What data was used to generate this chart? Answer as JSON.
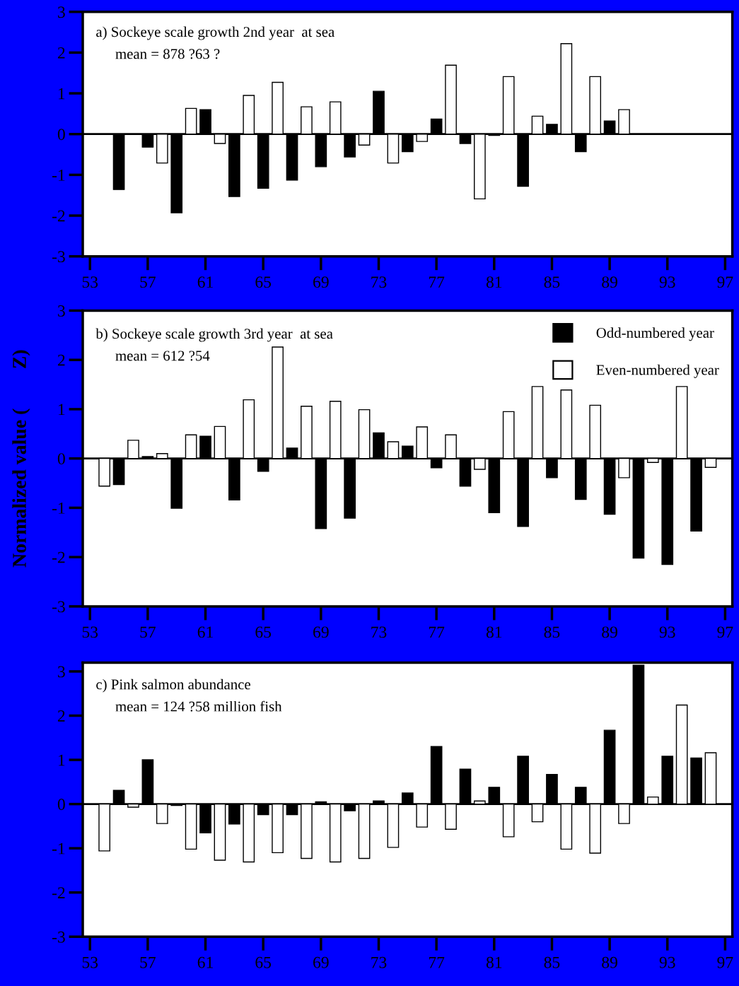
{
  "chart_data": [
    {
      "type": "bar",
      "title": "a) Sockeye scale growth 2nd year  at sea",
      "annotations": [
        "mean = 878 ?63 ?"
      ],
      "xlim": [
        52.5,
        97.5
      ],
      "xticks": [
        53,
        57,
        61,
        65,
        69,
        73,
        77,
        81,
        85,
        89,
        93,
        97
      ],
      "ylim": [
        -3,
        3
      ],
      "yticks": [
        {
          "value": -3,
          "label": "-3"
        },
        {
          "value": -2,
          "label": "-2"
        },
        {
          "value": -1,
          "label": "-1"
        },
        0,
        1,
        2,
        3
      ],
      "legend": false,
      "grid": false,
      "ref_lines": [
        {
          "axis": "y",
          "value": 0,
          "color": "#000000"
        }
      ],
      "series": [
        {
          "color": "#000000",
          "x": [
            55,
            57,
            59,
            61,
            63,
            65,
            67,
            69,
            71,
            73,
            75,
            77,
            79,
            81,
            83,
            85,
            87,
            89
          ],
          "values": [
            -1.36,
            -0.32,
            -1.93,
            0.6,
            -1.53,
            -1.33,
            -1.13,
            -0.8,
            -0.56,
            1.05,
            -0.43,
            0.37,
            -0.23,
            -0.03,
            -1.28,
            0.24,
            -0.43,
            0.32
          ]
        },
        {
          "color": "#ffffff",
          "x": [
            58,
            60,
            62,
            64,
            66,
            68,
            70,
            72,
            74,
            76,
            78,
            80,
            82,
            84,
            86,
            88,
            90
          ],
          "values": [
            -0.71,
            0.63,
            -0.23,
            0.95,
            1.27,
            0.67,
            0.79,
            -0.27,
            -0.71,
            -0.18,
            1.69,
            -1.59,
            1.41,
            0.44,
            2.22,
            1.41,
            0.6
          ]
        }
      ]
    },
    {
      "type": "bar",
      "title": "b) Sockeye scale growth 3rd year  at sea",
      "annotations": [
        "mean = 612 ?54"
      ],
      "ylabel": "Normalized value (        Z)",
      "xlim": [
        52.5,
        97.5
      ],
      "xticks": [
        53,
        57,
        61,
        65,
        69,
        73,
        77,
        81,
        85,
        89,
        93,
        97
      ],
      "ylim": [
        -3,
        3
      ],
      "yticks": [
        {
          "value": -3,
          "label": "-3"
        },
        {
          "value": -2,
          "label": "-2"
        },
        {
          "value": -1,
          "label": "-1"
        },
        0,
        1,
        2,
        3
      ],
      "legend": "top right",
      "grid": false,
      "ref_lines": [
        {
          "axis": "y",
          "value": 0,
          "color": "#000000"
        }
      ],
      "series": [
        {
          "name": "Odd-numbered year",
          "color": "#000000",
          "x": [
            55,
            57,
            59,
            61,
            63,
            65,
            67,
            69,
            71,
            73,
            75,
            77,
            79,
            81,
            83,
            85,
            87,
            89,
            91,
            93,
            95
          ],
          "values": [
            -0.53,
            0.04,
            -1.01,
            0.45,
            -0.84,
            -0.26,
            0.21,
            -1.42,
            -1.21,
            0.52,
            0.25,
            -0.19,
            -0.56,
            -1.1,
            -1.38,
            -0.39,
            -0.83,
            -1.13,
            -2.02,
            -2.15,
            -1.47
          ]
        },
        {
          "name": "Even-numbered year",
          "color": "#ffffff",
          "x": [
            54,
            56,
            58,
            60,
            62,
            64,
            66,
            68,
            70,
            72,
            74,
            76,
            78,
            80,
            82,
            84,
            86,
            88,
            90,
            92,
            94,
            96
          ],
          "values": [
            -0.56,
            0.37,
            0.1,
            0.48,
            0.65,
            1.19,
            2.26,
            1.06,
            1.16,
            0.99,
            0.34,
            0.64,
            0.48,
            -0.22,
            0.95,
            1.46,
            1.39,
            1.08,
            -0.39,
            -0.08,
            1.46,
            -0.18
          ]
        }
      ]
    },
    {
      "type": "bar",
      "title": "c) Pink salmon abundance",
      "annotations": [
        "mean = 124 ?58 million fish"
      ],
      "xlim": [
        52.5,
        97.5
      ],
      "xticks": [
        53,
        57,
        61,
        65,
        69,
        73,
        77,
        81,
        85,
        89,
        93,
        97
      ],
      "ylim": [
        -3,
        3.2
      ],
      "yticks": [
        {
          "value": -3,
          "label": "-3"
        },
        {
          "value": -2,
          "label": "-2"
        },
        {
          "value": -1,
          "label": "-1"
        },
        0,
        1,
        2,
        3
      ],
      "legend": false,
      "grid": false,
      "ref_lines": [
        {
          "axis": "y",
          "value": 0,
          "color": "#000000"
        }
      ],
      "series": [
        {
          "color": "#ffffff",
          "x": [
            54,
            56,
            58,
            60,
            62,
            64,
            66,
            68,
            70,
            72,
            74,
            76,
            78,
            80,
            82,
            84,
            86,
            88,
            90,
            92,
            94,
            96
          ],
          "values": [
            -1.06,
            -0.07,
            -0.44,
            -1.02,
            -1.27,
            -1.31,
            -1.1,
            -1.23,
            -1.31,
            -1.23,
            -0.98,
            -0.52,
            -0.57,
            0.07,
            -0.74,
            -0.4,
            -1.02,
            -1.11,
            -0.44,
            0.16,
            2.24,
            1.16
          ]
        },
        {
          "color": "#000000",
          "x": [
            55,
            57,
            59,
            61,
            63,
            65,
            67,
            69,
            71,
            73,
            75,
            77,
            79,
            81,
            83,
            85,
            87,
            89,
            91,
            93,
            95
          ],
          "values": [
            0.31,
            1.0,
            -0.03,
            -0.65,
            -0.45,
            -0.24,
            -0.24,
            0.05,
            -0.15,
            0.07,
            0.25,
            1.3,
            0.79,
            0.38,
            1.08,
            0.67,
            0.38,
            1.67,
            3.14,
            1.08,
            1.04
          ]
        }
      ]
    }
  ]
}
